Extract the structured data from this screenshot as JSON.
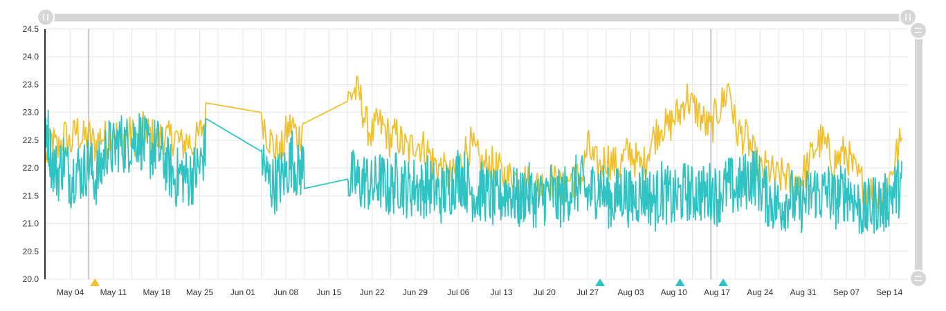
{
  "chart_data": {
    "type": "line",
    "title": "",
    "xlabel": "",
    "ylabel": "",
    "x_range": [
      "2020-04-30",
      "2020-09-17"
    ],
    "ylim": [
      20.0,
      24.5
    ],
    "y_ticks": [
      "24.5",
      "24.0",
      "23.5",
      "23.0",
      "22.5",
      "22.0",
      "21.5",
      "21.0",
      "20.5",
      "20.0"
    ],
    "x_ticks": [
      {
        "date": "2020-05-04",
        "label": "May 04"
      },
      {
        "date": "2020-05-11",
        "label": "May 11"
      },
      {
        "date": "2020-05-18",
        "label": "May 18"
      },
      {
        "date": "2020-05-25",
        "label": "May 25"
      },
      {
        "date": "2020-06-01",
        "label": "Jun 01"
      },
      {
        "date": "2020-06-08",
        "label": "Jun 08"
      },
      {
        "date": "2020-06-15",
        "label": "Jun 15"
      },
      {
        "date": "2020-06-22",
        "label": "Jun 22"
      },
      {
        "date": "2020-06-29",
        "label": "Jun 29"
      },
      {
        "date": "2020-07-06",
        "label": "Jul 06"
      },
      {
        "date": "2020-07-13",
        "label": "Jul 13"
      },
      {
        "date": "2020-07-20",
        "label": "Jul 20"
      },
      {
        "date": "2020-07-27",
        "label": "Jul 27"
      },
      {
        "date": "2020-08-03",
        "label": "Aug 03"
      },
      {
        "date": "2020-08-10",
        "label": "Aug 10"
      },
      {
        "date": "2020-08-17",
        "label": "Aug 17"
      },
      {
        "date": "2020-08-24",
        "label": "Aug 24"
      },
      {
        "date": "2020-08-31",
        "label": "Aug 31"
      },
      {
        "date": "2020-09-07",
        "label": "Sep 07"
      },
      {
        "date": "2020-09-14",
        "label": "Sep 14"
      }
    ],
    "grid": true,
    "legend": "none",
    "colors": {
      "series_yellow": "#f0c02e",
      "series_teal": "#2fc3c3",
      "grid": "#e6e6e6",
      "axis": "#333333",
      "scrollbar": "#d6d6d6",
      "label": "#333333"
    },
    "annotations": {
      "vertical_lines": [
        "2020-05-07",
        "2020-08-16"
      ],
      "markers": [
        {
          "date": "2020-05-08",
          "color": "#f0c02e"
        },
        {
          "date": "2020-07-29",
          "color": "#2fc3c3"
        },
        {
          "date": "2020-08-11",
          "color": "#2fc3c3"
        },
        {
          "date": "2020-08-18",
          "color": "#2fc3c3"
        }
      ]
    },
    "series": [
      {
        "values": [
          [
            "2020-04-30",
            22.1
          ],
          [
            "2020-05-01",
            22.5
          ],
          [
            "2020-05-02",
            22.3
          ],
          [
            "2020-05-03",
            22.6
          ],
          [
            "2020-05-04",
            22.4
          ],
          [
            "2020-05-05",
            22.7
          ],
          [
            "2020-05-06",
            22.5
          ],
          [
            "2020-05-07",
            22.6
          ],
          [
            "2020-05-08",
            22.4
          ],
          [
            "2020-05-09",
            22.6
          ],
          [
            "2020-05-10",
            22.5
          ],
          [
            "2020-05-11",
            22.7
          ],
          [
            "2020-05-12",
            22.5
          ],
          [
            "2020-05-13",
            22.6
          ],
          [
            "2020-05-14",
            22.6
          ],
          [
            "2020-05-15",
            22.5
          ],
          [
            "2020-05-16",
            22.7
          ],
          [
            "2020-05-17",
            22.6
          ],
          [
            "2020-05-18",
            22.5
          ],
          [
            "2020-05-19",
            22.6
          ],
          [
            "2020-05-20",
            22.5
          ],
          [
            "2020-05-21",
            22.6
          ],
          [
            "2020-05-22",
            22.4
          ],
          [
            "2020-05-23",
            22.5
          ],
          [
            "2020-05-24",
            22.4
          ],
          [
            "2020-05-25",
            22.6
          ],
          [
            "2020-05-26",
            22.9
          ],
          [
            "2020-06-04",
            23.0
          ],
          [
            "2020-06-05",
            22.6
          ],
          [
            "2020-06-06",
            22.4
          ],
          [
            "2020-06-07",
            22.2
          ],
          [
            "2020-06-08",
            22.6
          ],
          [
            "2020-06-09",
            22.8
          ],
          [
            "2020-06-10",
            22.5
          ],
          [
            "2020-06-11",
            22.9
          ],
          [
            "2020-06-18",
            23.2
          ],
          [
            "2020-06-19",
            23.4
          ],
          [
            "2020-06-20",
            23.3
          ],
          [
            "2020-06-21",
            22.8
          ],
          [
            "2020-06-22",
            22.6
          ],
          [
            "2020-06-23",
            22.8
          ],
          [
            "2020-06-24",
            22.7
          ],
          [
            "2020-06-25",
            22.5
          ],
          [
            "2020-06-26",
            22.6
          ],
          [
            "2020-06-27",
            22.4
          ],
          [
            "2020-06-28",
            22.3
          ],
          [
            "2020-06-29",
            22.5
          ],
          [
            "2020-06-30",
            22.4
          ],
          [
            "2020-07-01",
            22.3
          ],
          [
            "2020-07-02",
            22.1
          ],
          [
            "2020-07-03",
            22.0
          ],
          [
            "2020-07-04",
            21.9
          ],
          [
            "2020-07-05",
            21.8
          ],
          [
            "2020-07-06",
            22.0
          ],
          [
            "2020-07-07",
            22.3
          ],
          [
            "2020-07-08",
            22.4
          ],
          [
            "2020-07-09",
            22.2
          ],
          [
            "2020-07-10",
            22.0
          ],
          [
            "2020-07-11",
            22.1
          ],
          [
            "2020-07-12",
            22.0
          ],
          [
            "2020-07-13",
            21.9
          ],
          [
            "2020-07-14",
            21.8
          ],
          [
            "2020-07-15",
            21.9
          ],
          [
            "2020-07-16",
            21.7
          ],
          [
            "2020-07-17",
            21.8
          ],
          [
            "2020-07-18",
            21.6
          ],
          [
            "2020-07-19",
            21.7
          ],
          [
            "2020-07-20",
            21.7
          ],
          [
            "2020-07-21",
            21.8
          ],
          [
            "2020-07-22",
            21.7
          ],
          [
            "2020-07-23",
            21.6
          ],
          [
            "2020-07-24",
            21.8
          ],
          [
            "2020-07-25",
            21.8
          ],
          [
            "2020-07-26",
            21.8
          ],
          [
            "2020-07-27",
            22.4
          ],
          [
            "2020-07-28",
            22.1
          ],
          [
            "2020-07-29",
            22.0
          ],
          [
            "2020-07-30",
            22.2
          ],
          [
            "2020-07-31",
            22.1
          ],
          [
            "2020-08-01",
            22.0
          ],
          [
            "2020-08-02",
            22.2
          ],
          [
            "2020-08-03",
            22.3
          ],
          [
            "2020-08-04",
            22.1
          ],
          [
            "2020-08-05",
            22.0
          ],
          [
            "2020-08-06",
            22.4
          ],
          [
            "2020-08-07",
            22.6
          ],
          [
            "2020-08-08",
            22.8
          ],
          [
            "2020-08-09",
            22.7
          ],
          [
            "2020-08-10",
            22.9
          ],
          [
            "2020-08-11",
            23.0
          ],
          [
            "2020-08-12",
            23.3
          ],
          [
            "2020-08-13",
            23.1
          ],
          [
            "2020-08-14",
            23.0
          ],
          [
            "2020-08-15",
            22.8
          ],
          [
            "2020-08-16",
            22.7
          ],
          [
            "2020-08-17",
            23.0
          ],
          [
            "2020-08-18",
            23.2
          ],
          [
            "2020-08-19",
            23.5
          ],
          [
            "2020-08-20",
            22.7
          ],
          [
            "2020-08-21",
            22.6
          ],
          [
            "2020-08-22",
            22.5
          ],
          [
            "2020-08-23",
            22.2
          ],
          [
            "2020-08-24",
            21.9
          ],
          [
            "2020-08-25",
            22.0
          ],
          [
            "2020-08-26",
            21.9
          ],
          [
            "2020-08-27",
            21.8
          ],
          [
            "2020-08-28",
            21.9
          ],
          [
            "2020-08-29",
            21.7
          ],
          [
            "2020-08-30",
            21.8
          ],
          [
            "2020-08-31",
            21.9
          ],
          [
            "2020-09-01",
            22.1
          ],
          [
            "2020-09-02",
            22.4
          ],
          [
            "2020-09-03",
            22.5
          ],
          [
            "2020-09-04",
            22.3
          ],
          [
            "2020-09-05",
            22.1
          ],
          [
            "2020-09-06",
            22.2
          ],
          [
            "2020-09-07",
            22.3
          ],
          [
            "2020-09-08",
            22.0
          ],
          [
            "2020-09-09",
            21.8
          ],
          [
            "2020-09-10",
            21.7
          ],
          [
            "2020-09-11",
            21.6
          ],
          [
            "2020-09-12",
            21.5
          ],
          [
            "2020-09-13",
            21.4
          ],
          [
            "2020-09-14",
            21.8
          ],
          [
            "2020-09-15",
            22.2
          ],
          [
            "2020-09-16",
            22.5
          ]
        ]
      },
      {
        "values": [
          [
            "2020-04-30",
            22.9
          ],
          [
            "2020-05-01",
            22.1
          ],
          [
            "2020-05-02",
            21.9
          ],
          [
            "2020-05-03",
            22.2
          ],
          [
            "2020-05-04",
            21.8
          ],
          [
            "2020-05-05",
            22.0
          ],
          [
            "2020-05-06",
            21.9
          ],
          [
            "2020-05-07",
            22.1
          ],
          [
            "2020-05-08",
            21.8
          ],
          [
            "2020-05-09",
            22.0
          ],
          [
            "2020-05-10",
            22.4
          ],
          [
            "2020-05-11",
            22.3
          ],
          [
            "2020-05-12",
            22.5
          ],
          [
            "2020-05-13",
            22.4
          ],
          [
            "2020-05-14",
            22.5
          ],
          [
            "2020-05-15",
            22.6
          ],
          [
            "2020-05-16",
            22.4
          ],
          [
            "2020-05-17",
            22.3
          ],
          [
            "2020-05-18",
            22.4
          ],
          [
            "2020-05-19",
            22.2
          ],
          [
            "2020-05-20",
            22.0
          ],
          [
            "2020-05-21",
            21.8
          ],
          [
            "2020-05-22",
            21.9
          ],
          [
            "2020-05-23",
            21.8
          ],
          [
            "2020-05-24",
            21.9
          ],
          [
            "2020-05-25",
            22.0
          ],
          [
            "2020-05-26",
            22.4
          ],
          [
            "2020-06-04",
            22.3
          ],
          [
            "2020-06-05",
            21.8
          ],
          [
            "2020-06-06",
            21.7
          ],
          [
            "2020-06-07",
            21.8
          ],
          [
            "2020-06-08",
            21.9
          ],
          [
            "2020-06-09",
            22.2
          ],
          [
            "2020-06-10",
            21.9
          ],
          [
            "2020-06-11",
            22.1
          ],
          [
            "2020-06-18",
            21.8
          ],
          [
            "2020-06-19",
            21.8
          ],
          [
            "2020-06-20",
            21.7
          ],
          [
            "2020-06-21",
            21.8
          ],
          [
            "2020-06-22",
            21.6
          ],
          [
            "2020-06-23",
            21.8
          ],
          [
            "2020-06-24",
            21.7
          ],
          [
            "2020-06-25",
            21.6
          ],
          [
            "2020-06-26",
            21.8
          ],
          [
            "2020-06-27",
            21.7
          ],
          [
            "2020-06-28",
            21.6
          ],
          [
            "2020-06-29",
            21.7
          ],
          [
            "2020-06-30",
            21.6
          ],
          [
            "2020-07-01",
            21.7
          ],
          [
            "2020-07-02",
            21.6
          ],
          [
            "2020-07-03",
            21.5
          ],
          [
            "2020-07-04",
            21.6
          ],
          [
            "2020-07-05",
            21.7
          ],
          [
            "2020-07-06",
            21.9
          ],
          [
            "2020-07-07",
            21.8
          ],
          [
            "2020-07-08",
            21.6
          ],
          [
            "2020-07-09",
            21.5
          ],
          [
            "2020-07-10",
            21.6
          ],
          [
            "2020-07-11",
            21.5
          ],
          [
            "2020-07-12",
            21.4
          ],
          [
            "2020-07-13",
            21.5
          ],
          [
            "2020-07-14",
            21.6
          ],
          [
            "2020-07-15",
            21.5
          ],
          [
            "2020-07-16",
            21.4
          ],
          [
            "2020-07-17",
            21.6
          ],
          [
            "2020-07-18",
            21.5
          ],
          [
            "2020-07-19",
            21.4
          ],
          [
            "2020-07-20",
            21.5
          ],
          [
            "2020-07-21",
            21.6
          ],
          [
            "2020-07-22",
            21.4
          ],
          [
            "2020-07-23",
            21.5
          ],
          [
            "2020-07-24",
            21.6
          ],
          [
            "2020-07-25",
            21.7
          ],
          [
            "2020-07-26",
            21.7
          ],
          [
            "2020-07-27",
            21.5
          ],
          [
            "2020-07-28",
            21.6
          ],
          [
            "2020-07-29",
            21.7
          ],
          [
            "2020-07-30",
            21.5
          ],
          [
            "2020-07-31",
            21.4
          ],
          [
            "2020-08-01",
            21.5
          ],
          [
            "2020-08-02",
            21.6
          ],
          [
            "2020-08-03",
            21.4
          ],
          [
            "2020-08-04",
            21.5
          ],
          [
            "2020-08-05",
            21.6
          ],
          [
            "2020-08-06",
            21.5
          ],
          [
            "2020-08-07",
            21.4
          ],
          [
            "2020-08-08",
            21.6
          ],
          [
            "2020-08-09",
            21.5
          ],
          [
            "2020-08-10",
            21.4
          ],
          [
            "2020-08-11",
            21.5
          ],
          [
            "2020-08-12",
            21.6
          ],
          [
            "2020-08-13",
            21.5
          ],
          [
            "2020-08-14",
            21.6
          ],
          [
            "2020-08-15",
            21.5
          ],
          [
            "2020-08-16",
            21.6
          ],
          [
            "2020-08-17",
            21.5
          ],
          [
            "2020-08-18",
            21.6
          ],
          [
            "2020-08-19",
            21.7
          ],
          [
            "2020-08-20",
            21.6
          ],
          [
            "2020-08-21",
            21.7
          ],
          [
            "2020-08-22",
            21.8
          ],
          [
            "2020-08-23",
            21.9
          ],
          [
            "2020-08-24",
            21.7
          ],
          [
            "2020-08-25",
            21.5
          ],
          [
            "2020-08-26",
            21.4
          ],
          [
            "2020-08-27",
            21.3
          ],
          [
            "2020-08-28",
            21.4
          ],
          [
            "2020-08-29",
            21.5
          ],
          [
            "2020-08-30",
            21.3
          ],
          [
            "2020-08-31",
            21.4
          ],
          [
            "2020-09-01",
            21.5
          ],
          [
            "2020-09-02",
            21.6
          ],
          [
            "2020-09-03",
            21.5
          ],
          [
            "2020-09-04",
            21.6
          ],
          [
            "2020-09-05",
            21.4
          ],
          [
            "2020-09-06",
            21.5
          ],
          [
            "2020-09-07",
            21.6
          ],
          [
            "2020-09-08",
            21.5
          ],
          [
            "2020-09-09",
            21.3
          ],
          [
            "2020-09-10",
            21.2
          ],
          [
            "2020-09-11",
            21.3
          ],
          [
            "2020-09-12",
            21.4
          ],
          [
            "2020-09-13",
            21.3
          ],
          [
            "2020-09-14",
            21.5
          ],
          [
            "2020-09-15",
            21.6
          ],
          [
            "2020-09-16",
            21.7
          ]
        ]
      }
    ]
  }
}
